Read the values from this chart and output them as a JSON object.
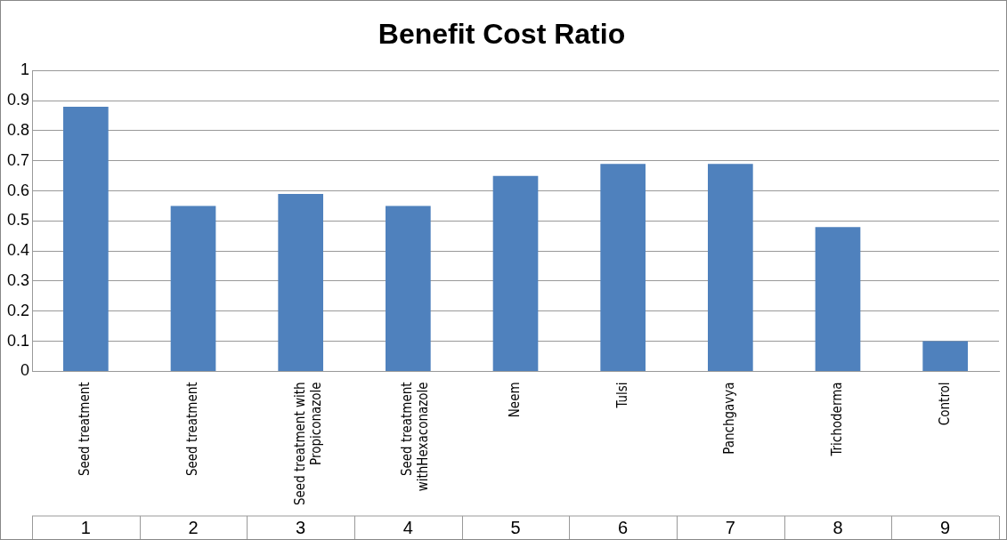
{
  "chart_data": {
    "type": "bar",
    "title": "Benefit Cost Ratio",
    "categories": [
      "Seed treatment",
      "Seed treatment",
      "Seed treatment with Propiconazole",
      "Seed treatment withHexaconazole",
      "Neem",
      "Tulsi",
      "Panchgavya",
      "Trichoderma",
      "Control"
    ],
    "values": [
      0.88,
      0.55,
      0.59,
      0.55,
      0.65,
      0.69,
      0.69,
      0.48,
      0.1
    ],
    "color": "#4f81bd",
    "ylim": [
      0,
      1
    ],
    "yticks": [
      0,
      0.1,
      0.2,
      0.3,
      0.4,
      0.5,
      0.6,
      0.7,
      0.8,
      0.9,
      1
    ],
    "grid": "y",
    "legend": false,
    "annotations": [
      "1",
      "2",
      "3",
      "4",
      "5",
      "6",
      "7",
      "8",
      "9"
    ]
  }
}
